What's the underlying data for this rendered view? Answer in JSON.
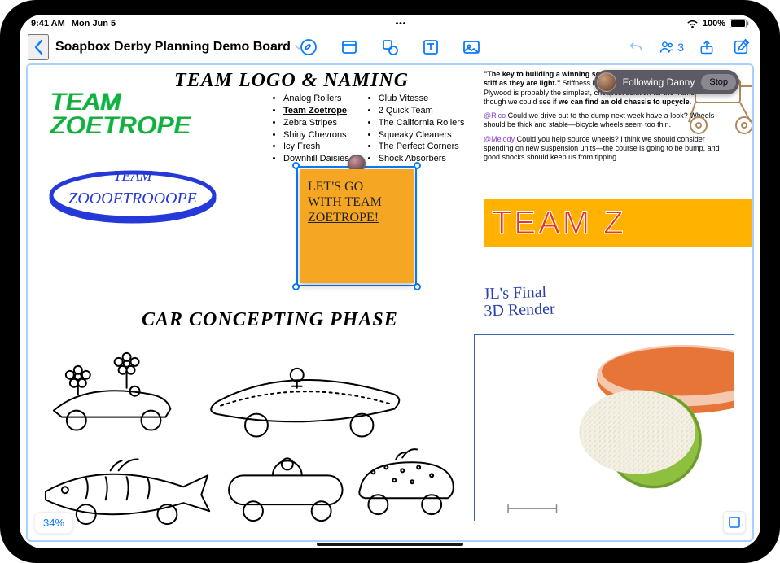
{
  "status": {
    "time": "9:41 AM",
    "date": "Mon Jun 5",
    "battery_pct": "100%"
  },
  "toolbar": {
    "board_title": "Soapbox Derby Planning Demo Board",
    "collab_count": "3"
  },
  "follow": {
    "label": "Following Danny",
    "stop": "Stop"
  },
  "zoom": {
    "value": "34%"
  },
  "sections": {
    "heading1": "TEAM LOGO & NAMING",
    "heading2": "CAR CONCEPTING PHASE",
    "render_label_l1": "JL's Final",
    "render_label_l2": "3D Render"
  },
  "logos": {
    "team_line1": "TEAM",
    "team_line2": "ZOETROPE",
    "ring_line1": "TEAM",
    "ring_line2": "ZOOOETROOOPE",
    "banner": "TEAM Z"
  },
  "names": {
    "col1": [
      "Analog Rollers",
      "Team Zoetrope",
      "Zebra Stripes",
      "Shiny Chevrons",
      "Icy Fresh",
      "Downhill Daisies"
    ],
    "col2": [
      "Club Vitesse",
      "2 Quick Team",
      "The California Rollers",
      "Squeaky Cleaners",
      "The Perfect Corners",
      "Shock Absorbers"
    ],
    "selected": "Team Zoetrope"
  },
  "sticky": {
    "line1": "LET'S GO",
    "line2": "WITH",
    "underline": "TEAM",
    "line3": "ZOETROPE!"
  },
  "notes": {
    "quote_lead": "\"The key to building a winning soapbox is to make the wheels as stiff as they are light.\"",
    "quote_rest": " Stiffness improves steering and cornering! Plywood is probably the simplest, cheapest solution for the frame, though we could see if ",
    "quote_bold": "we can find an old chassis to upcycle.",
    "m1": "@Rico",
    "m1_text": " Could we drive out to the dump next week have a look? Wheels should be thick and stable—bicycle wheels seem too thin.",
    "m2": "@Melody",
    "m2_text": " Could you help source wheels? I think we should consider spending on new suspension units—the course is going to be bump, and good shocks should keep us from tipping."
  },
  "colors": {
    "accent": "#0a7aff",
    "green": "#1ea83a",
    "blue": "#2439d8",
    "orange": "#f5a623",
    "banner_bg": "#ffb300",
    "banner_text": "#e8332a",
    "mention": "#8a3fc9"
  }
}
